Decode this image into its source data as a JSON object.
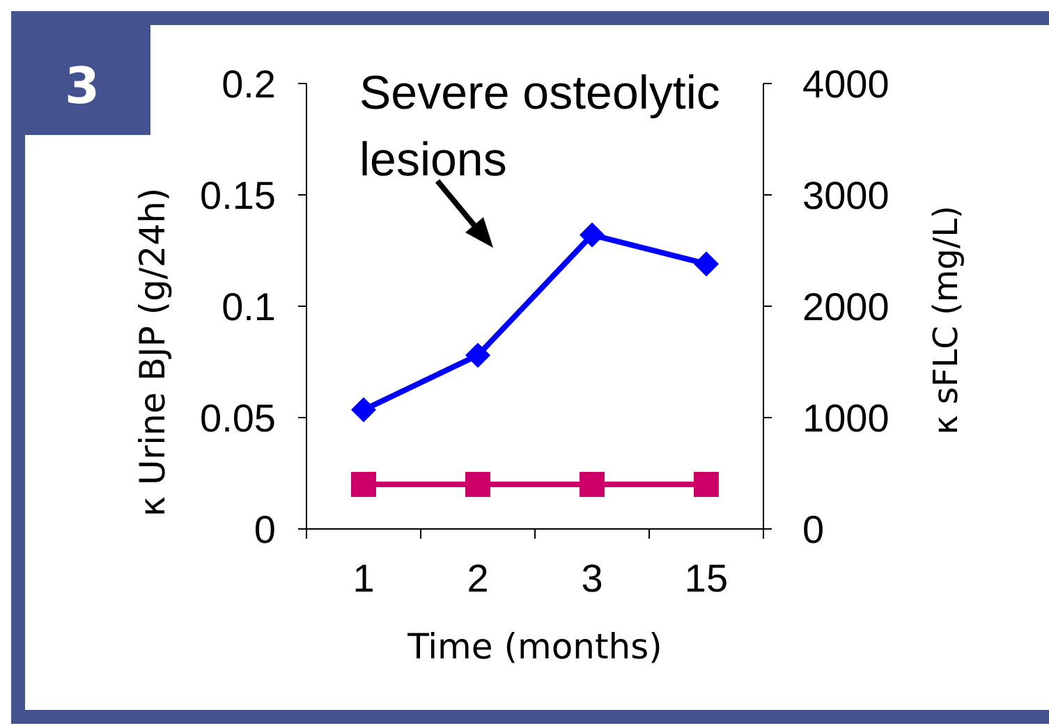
{
  "chart_data": {
    "type": "line",
    "categories": [
      "1",
      "2",
      "3",
      "15"
    ],
    "xlabel": "Time (months)",
    "ylabel": "κ Urine BJP (g/24h)",
    "y2label": "κ sFLC (mg/L)",
    "ylim": [
      0,
      0.2
    ],
    "yticks": [
      0,
      0.05,
      0.1,
      0.15,
      0.2
    ],
    "y2lim": [
      0,
      4000
    ],
    "y2ticks": [
      0,
      1000,
      2000,
      3000,
      4000
    ],
    "series": [
      {
        "color": "#0000ff",
        "values": [
          1070,
          1560,
          2640,
          2380
        ],
        "axis": "y2",
        "marker": "diamond"
      },
      {
        "color": "#cc0066",
        "values": [
          0.02,
          0.02,
          0.02,
          0.02
        ],
        "axis": "y",
        "marker": "square"
      }
    ],
    "line_style": "solid",
    "annotations": [
      "3",
      "Severe osteolytic\nlesions"
    ]
  }
}
